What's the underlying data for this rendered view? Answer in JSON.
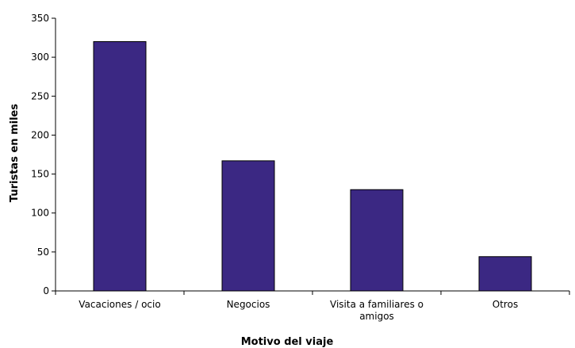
{
  "chart_data": {
    "type": "bar",
    "categories": [
      "Vacaciones / ocio",
      "Negocios",
      "Visita a familiares o amigos",
      "Otros"
    ],
    "category_labels": [
      [
        "Vacaciones / ocio"
      ],
      [
        "Negocios"
      ],
      [
        "Visita a familiares o",
        "amigos"
      ],
      [
        "Otros"
      ]
    ],
    "values": [
      320,
      167,
      130,
      44
    ],
    "xlabel": "Motivo del viaje",
    "ylabel": "Turistas en miles",
    "ylim": [
      0,
      350
    ],
    "yticks": [
      0,
      50,
      100,
      150,
      200,
      250,
      300,
      350
    ],
    "grid": false,
    "legend": "none",
    "bar_color": "#3b2883"
  }
}
